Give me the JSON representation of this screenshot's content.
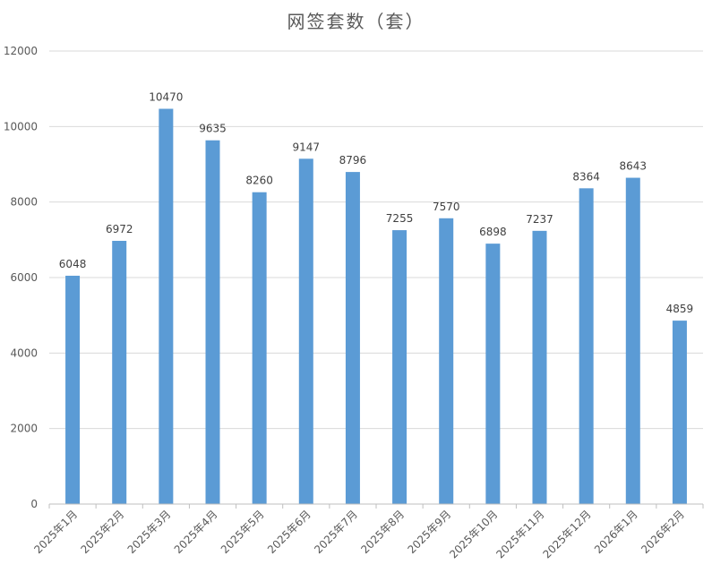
{
  "chart_data": {
    "type": "bar",
    "title": "网签套数（套）",
    "categories": [
      "2025年1月",
      "2025年2月",
      "2025年3月",
      "2025年4月",
      "2025年5月",
      "2025年6月",
      "2025年7月",
      "2025年8月",
      "2025年9月",
      "2025年10月",
      "2025年11月",
      "2025年12月",
      "2026年1月",
      "2026年2月"
    ],
    "values": [
      6048,
      6972,
      10470,
      9635,
      8260,
      9147,
      8796,
      7255,
      7570,
      6898,
      7237,
      8364,
      8643,
      4859
    ],
    "ylim": [
      0,
      12000
    ],
    "yticks": [
      0,
      2000,
      4000,
      6000,
      8000,
      10000,
      12000
    ],
    "grid": true,
    "legend": "none",
    "bar_color": "#5b9bd5"
  }
}
